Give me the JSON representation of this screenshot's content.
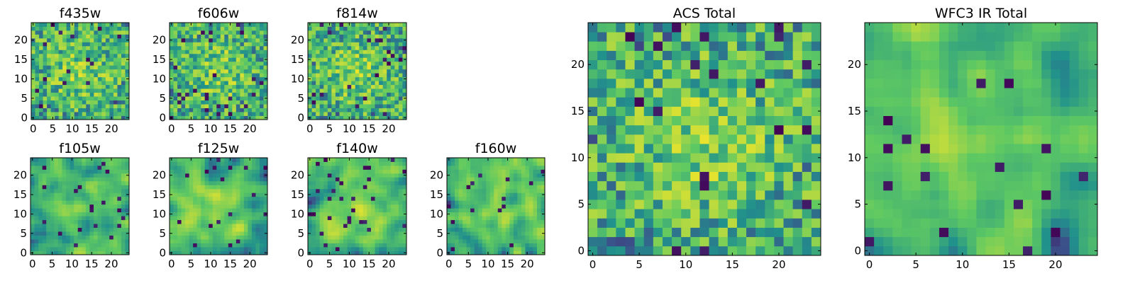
{
  "figure": {
    "colormap": "viridis",
    "colormap_stops": [
      "#440154",
      "#3b528b",
      "#21918c",
      "#5ec962",
      "#fde725"
    ],
    "background": "#ffffff"
  },
  "chart_data": [
    {
      "type": "heatmap",
      "title": "f435w",
      "grid": [
        25,
        25
      ],
      "xlim": [
        0,
        24
      ],
      "ylim": [
        0,
        24
      ],
      "xticks": [
        "0",
        "5",
        "10",
        "15",
        "20"
      ],
      "yticks": [
        "0",
        "5",
        "10",
        "15",
        "20"
      ],
      "texture": "noisy",
      "seed": 11
    },
    {
      "type": "heatmap",
      "title": "f606w",
      "grid": [
        25,
        25
      ],
      "xlim": [
        0,
        24
      ],
      "ylim": [
        0,
        24
      ],
      "xticks": [
        "0",
        "5",
        "10",
        "15",
        "20"
      ],
      "yticks": [
        "0",
        "5",
        "10",
        "15",
        "20"
      ],
      "texture": "noisy",
      "seed": 23
    },
    {
      "type": "heatmap",
      "title": "f814w",
      "grid": [
        25,
        25
      ],
      "xlim": [
        0,
        24
      ],
      "ylim": [
        0,
        24
      ],
      "xticks": [
        "0",
        "5",
        "10",
        "15",
        "20"
      ],
      "yticks": [
        "0",
        "5",
        "10",
        "15",
        "20"
      ],
      "texture": "noisy",
      "seed": 37
    },
    {
      "type": "heatmap",
      "title": "f105w",
      "grid": [
        25,
        25
      ],
      "xlim": [
        0,
        24
      ],
      "ylim": [
        0,
        24
      ],
      "xticks": [
        "0",
        "5",
        "10",
        "15",
        "20"
      ],
      "yticks": [
        "0",
        "5",
        "10",
        "15",
        "20"
      ],
      "texture": "blobby",
      "seed": 41
    },
    {
      "type": "heatmap",
      "title": "f125w",
      "grid": [
        25,
        25
      ],
      "xlim": [
        0,
        24
      ],
      "ylim": [
        0,
        24
      ],
      "xticks": [
        "0",
        "5",
        "10",
        "15",
        "20"
      ],
      "yticks": [
        "0",
        "5",
        "10",
        "15",
        "20"
      ],
      "texture": "blobby",
      "seed": 53
    },
    {
      "type": "heatmap",
      "title": "f140w",
      "grid": [
        25,
        25
      ],
      "xlim": [
        0,
        24
      ],
      "ylim": [
        0,
        24
      ],
      "xticks": [
        "0",
        "5",
        "10",
        "15",
        "20"
      ],
      "yticks": [
        "0",
        "5",
        "10",
        "15",
        "20"
      ],
      "texture": "blobby",
      "seed": 67
    },
    {
      "type": "heatmap",
      "title": "f160w",
      "grid": [
        25,
        25
      ],
      "xlim": [
        0,
        24
      ],
      "ylim": [
        0,
        24
      ],
      "xticks": [
        "0",
        "5",
        "10",
        "15",
        "20"
      ],
      "yticks": [
        "0",
        "5",
        "10",
        "15",
        "20"
      ],
      "texture": "blobby",
      "seed": 79
    },
    {
      "type": "heatmap",
      "title": "ACS Total",
      "grid": [
        25,
        25
      ],
      "xlim": [
        0,
        24
      ],
      "ylim": [
        0,
        24
      ],
      "xticks": [
        "0",
        "5",
        "10",
        "15",
        "20"
      ],
      "yticks": [
        "0",
        "5",
        "10",
        "15",
        "20"
      ],
      "texture": "noisy",
      "seed": 97
    },
    {
      "type": "heatmap",
      "title": "WFC3 IR Total",
      "grid": [
        25,
        25
      ],
      "xlim": [
        0,
        24
      ],
      "ylim": [
        0,
        24
      ],
      "xticks": [
        "0",
        "5",
        "10",
        "15",
        "20"
      ],
      "yticks": [
        "0",
        "5",
        "10",
        "15",
        "20"
      ],
      "texture": "blobby",
      "seed": 131
    }
  ]
}
